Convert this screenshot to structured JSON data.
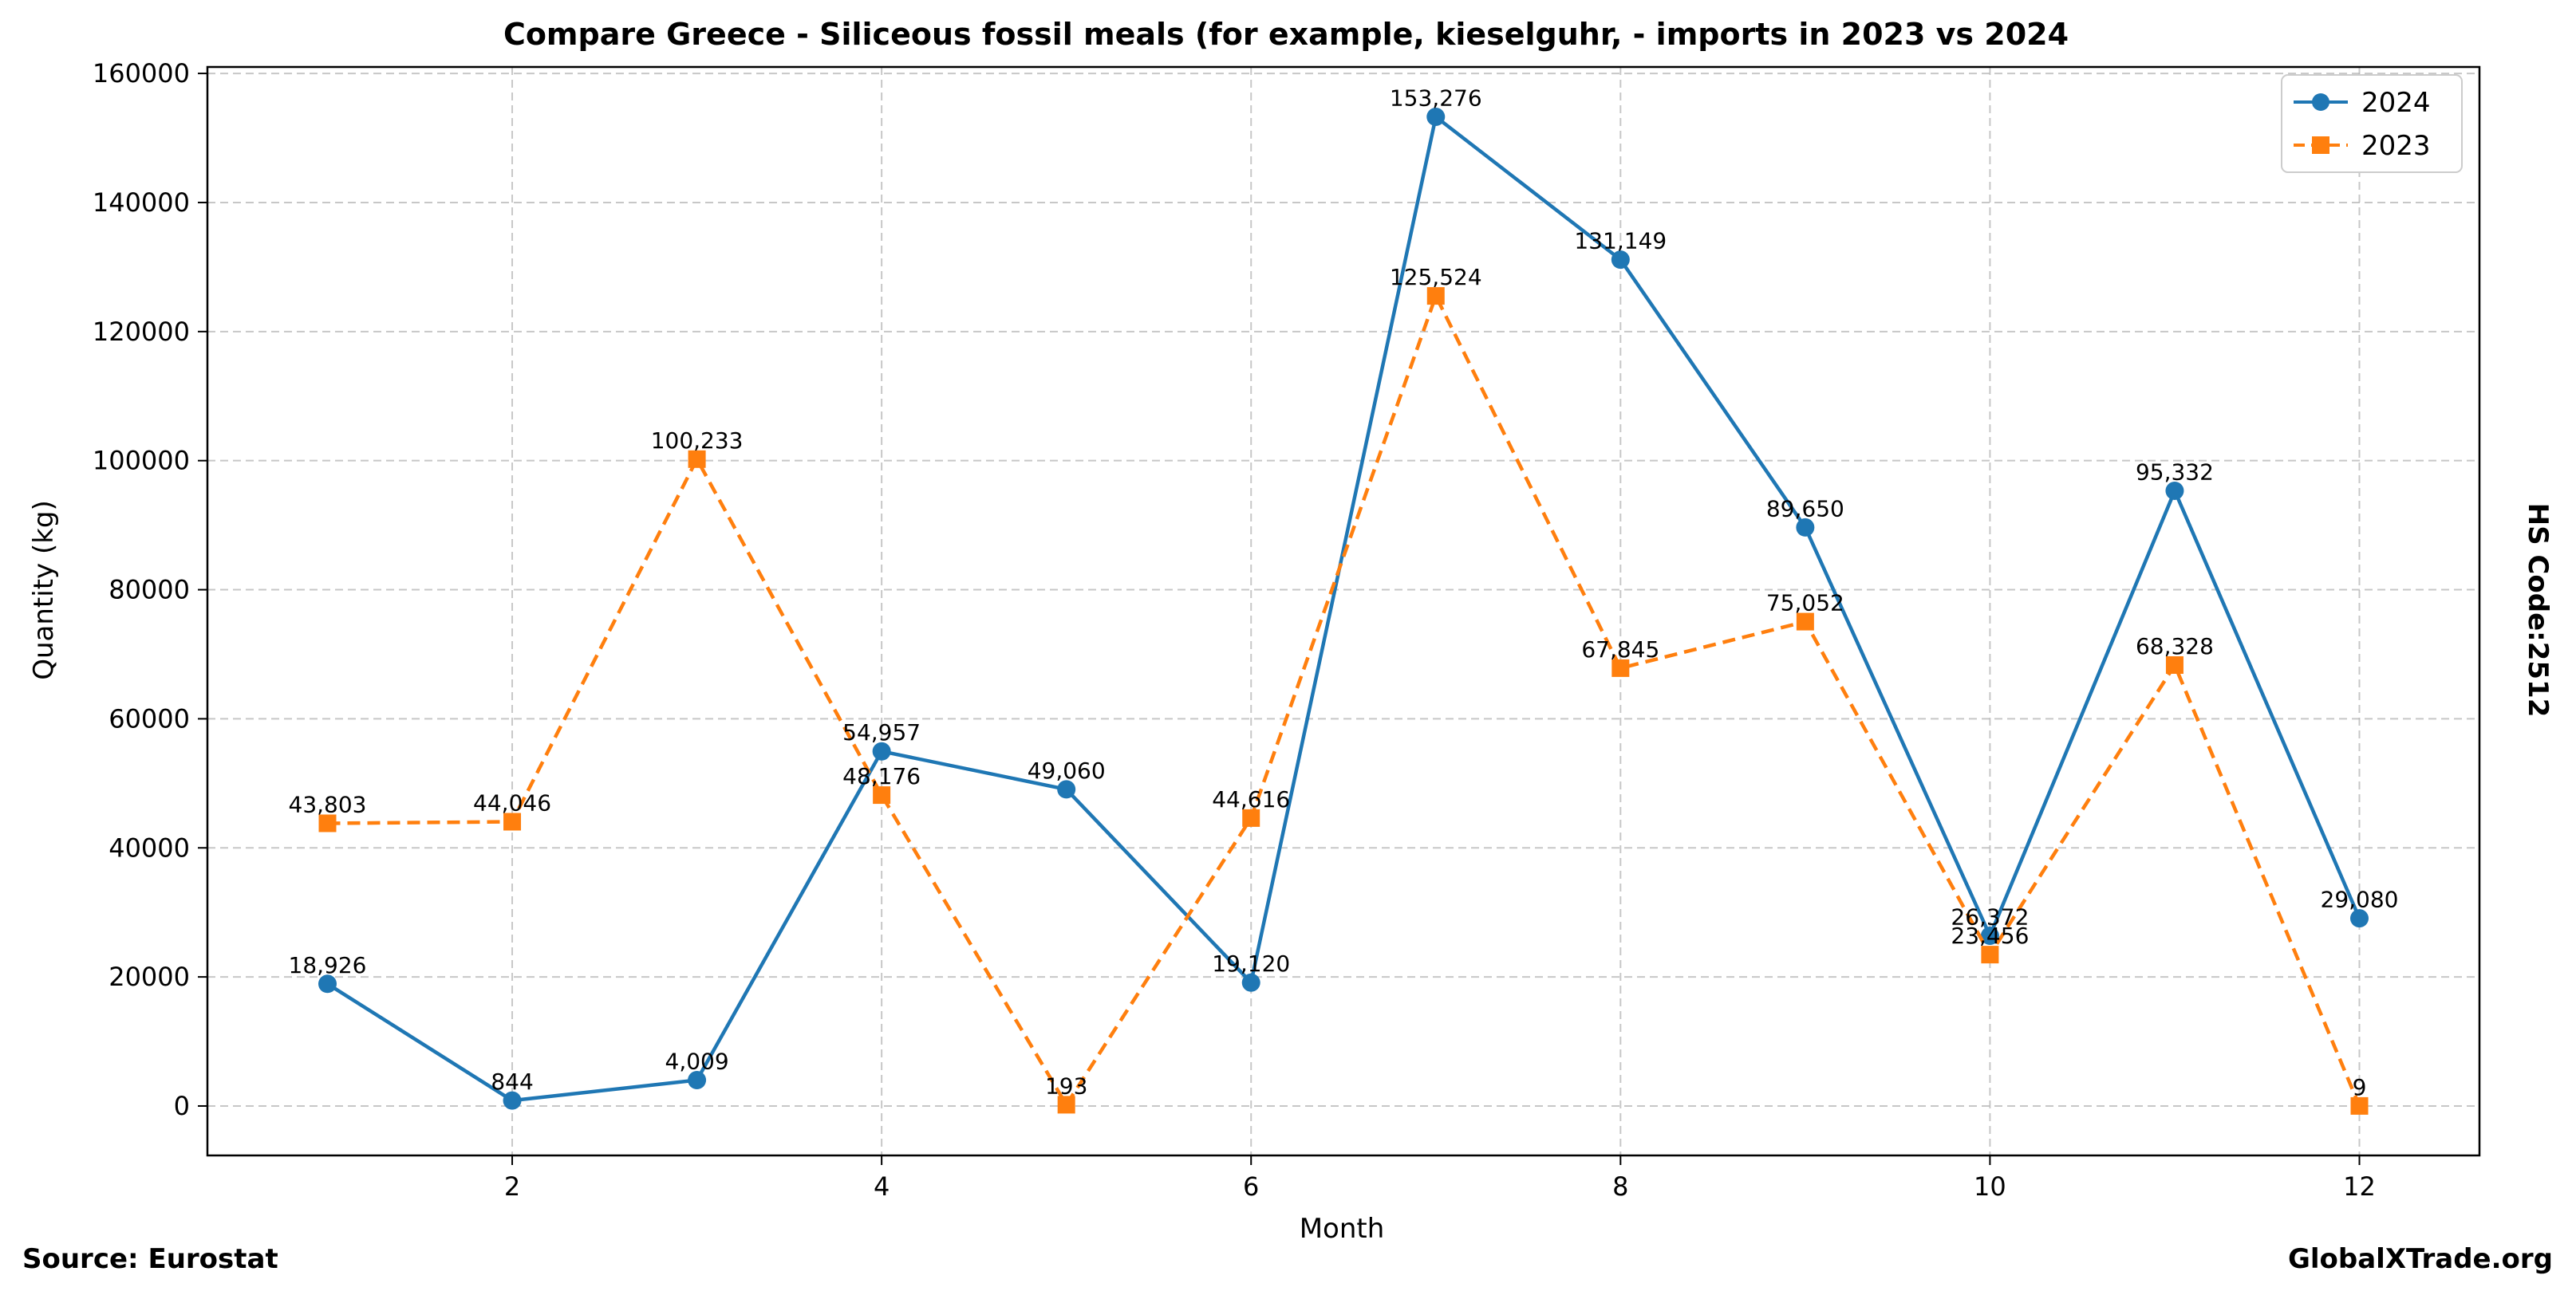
{
  "chart_data": {
    "type": "line",
    "title": "Compare Greece - Siliceous fossil meals (for example, kieselguhr, - imports in 2023 vs 2024",
    "xlabel": "Month",
    "ylabel": "Quantity (kg)",
    "side_label": "HS Code:2512",
    "source": "Source: Eurostat",
    "brand": "GlobalXTrade.org",
    "xlim": [
      0.35,
      12.65
    ],
    "ylim": [
      -7664,
      161000
    ],
    "x_ticks": [
      2,
      4,
      6,
      8,
      10,
      12
    ],
    "y_ticks": [
      0,
      20000,
      40000,
      60000,
      80000,
      100000,
      120000,
      140000,
      160000
    ],
    "grid": true,
    "legend_position": "top-right",
    "x": [
      1,
      2,
      3,
      4,
      5,
      6,
      7,
      8,
      9,
      10,
      11,
      12
    ],
    "series": [
      {
        "name": "2024",
        "color": "#1f77b4",
        "style": "solid",
        "marker": "circle",
        "values": [
          18926,
          844,
          4009,
          54957,
          49060,
          19120,
          153276,
          131149,
          89650,
          26372,
          95332,
          29080
        ],
        "labels": [
          "18,926",
          "844",
          "4,009",
          "54,957",
          "49,060",
          "19,120",
          "153,276",
          "131,149",
          "89,650",
          "26,372",
          "95,332",
          "29,080"
        ]
      },
      {
        "name": "2023",
        "color": "#ff7f0e",
        "style": "dashed",
        "marker": "square",
        "values": [
          43803,
          44046,
          100233,
          48176,
          193,
          44616,
          125524,
          67845,
          75052,
          23456,
          68328,
          9
        ],
        "labels": [
          "43,803",
          "44,046",
          "100,233",
          "48,176",
          "193",
          "44,616",
          "125,524",
          "67,845",
          "75,052",
          "23,456",
          "68,328",
          "9"
        ]
      }
    ]
  }
}
